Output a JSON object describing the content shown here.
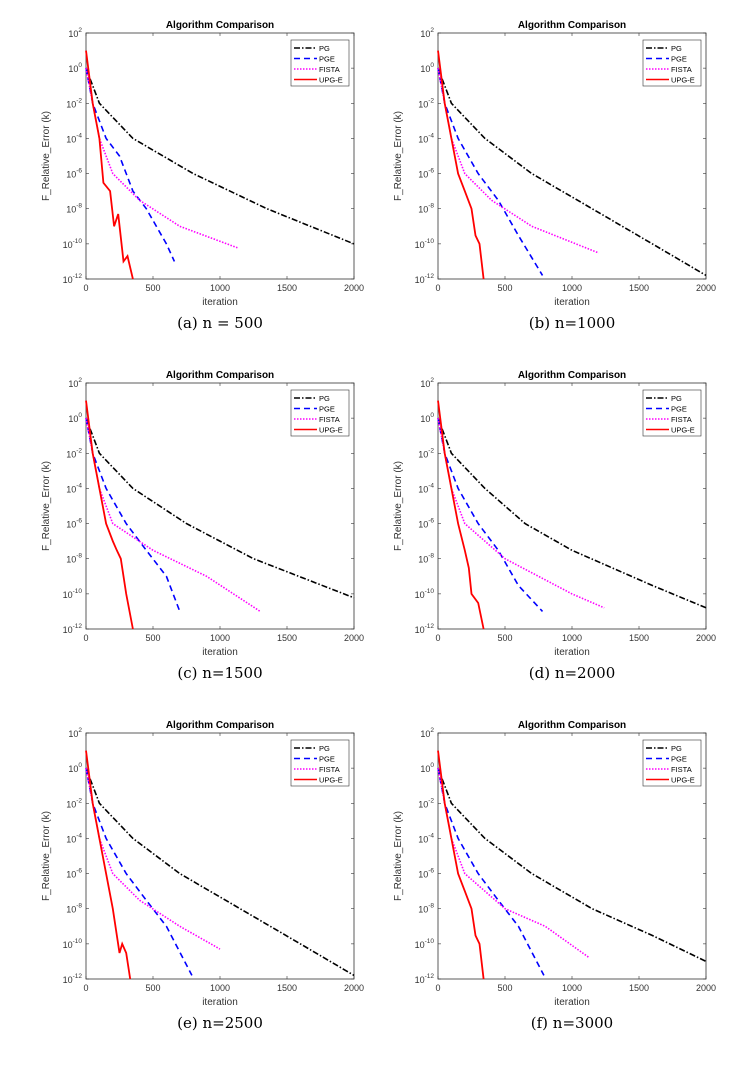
{
  "chart_data": [
    {
      "type": "line",
      "caption": "(a) n = 500",
      "title": "Algorithm Comparison",
      "xlabel": "iteration",
      "ylabel": "F_Relative_Error (k)",
      "xlim": [
        0,
        2000
      ],
      "ylim": [
        1e-12,
        100
      ],
      "yscale": "log",
      "legend": "top-right",
      "series": [
        {
          "name": "PG",
          "color": "#000000",
          "style": "dash-dot",
          "points": [
            [
              0,
              1
            ],
            [
              100,
              0.01
            ],
            [
              350,
              0.0001
            ],
            [
              800,
              1e-06
            ],
            [
              1350,
              1e-08
            ],
            [
              2000,
              1e-10
            ]
          ]
        },
        {
          "name": "PGE",
          "color": "#0000ff",
          "style": "dashed",
          "points": [
            [
              0,
              1
            ],
            [
              50,
              0.01
            ],
            [
              150,
              0.0001
            ],
            [
              250,
              1e-05
            ],
            [
              350,
              1e-07
            ],
            [
              450,
              1e-08
            ],
            [
              600,
              1e-10
            ],
            [
              660,
              1e-11
            ]
          ]
        },
        {
          "name": "FISTA",
          "color": "#ff00ff",
          "style": "dotted",
          "points": [
            [
              0,
              1
            ],
            [
              100,
              0.0001
            ],
            [
              200,
              1e-06
            ],
            [
              400,
              3e-08
            ],
            [
              700,
              1e-09
            ],
            [
              1130,
              6e-11
            ]
          ]
        },
        {
          "name": "UPG-E",
          "color": "#ff0000",
          "style": "solid",
          "points": [
            [
              0,
              10
            ],
            [
              50,
              0.01
            ],
            [
              100,
              0.0001
            ],
            [
              130,
              3e-07
            ],
            [
              180,
              1e-07
            ],
            [
              210,
              1e-09
            ],
            [
              240,
              5e-09
            ],
            [
              280,
              1e-11
            ],
            [
              310,
              2e-11
            ],
            [
              350,
              1e-12
            ]
          ]
        }
      ]
    },
    {
      "type": "line",
      "caption": "(b) n=1000",
      "title": "Algorithm Comparison",
      "xlabel": "iteration",
      "ylabel": "F_Relative_Error (k)",
      "xlim": [
        0,
        2000
      ],
      "ylim": [
        1e-12,
        100
      ],
      "yscale": "log",
      "legend": "top-right",
      "series": [
        {
          "name": "PG",
          "color": "#000000",
          "style": "dash-dot",
          "points": [
            [
              0,
              1
            ],
            [
              100,
              0.01
            ],
            [
              350,
              0.0001
            ],
            [
              700,
              1e-06
            ],
            [
              1150,
              1e-08
            ],
            [
              1600,
              1e-10
            ],
            [
              2000,
              1.6e-12
            ]
          ]
        },
        {
          "name": "PGE",
          "color": "#0000ff",
          "style": "dashed",
          "points": [
            [
              0,
              1
            ],
            [
              50,
              0.01
            ],
            [
              150,
              0.0001
            ],
            [
              300,
              1e-06
            ],
            [
              450,
              3e-08
            ],
            [
              600,
              3e-10
            ],
            [
              780,
              1.6e-12
            ]
          ]
        },
        {
          "name": "FISTA",
          "color": "#ff00ff",
          "style": "dotted",
          "points": [
            [
              0,
              1
            ],
            [
              100,
              0.0001
            ],
            [
              200,
              1e-06
            ],
            [
              400,
              3e-08
            ],
            [
              700,
              1e-09
            ],
            [
              1200,
              3e-11
            ]
          ]
        },
        {
          "name": "UPG-E",
          "color": "#ff0000",
          "style": "solid",
          "points": [
            [
              0,
              10
            ],
            [
              50,
              0.01
            ],
            [
              100,
              0.0001
            ],
            [
              150,
              1e-06
            ],
            [
              200,
              1e-07
            ],
            [
              250,
              1e-08
            ],
            [
              280,
              3e-10
            ],
            [
              310,
              1e-10
            ],
            [
              340,
              1e-12
            ]
          ]
        }
      ]
    },
    {
      "type": "line",
      "caption": "(c) n=1500",
      "title": "Algorithm Comparison",
      "xlabel": "iteration",
      "ylabel": "F_Relative_Error (k)",
      "xlim": [
        0,
        2000
      ],
      "ylim": [
        1e-12,
        100
      ],
      "yscale": "log",
      "legend": "top-right",
      "series": [
        {
          "name": "PG",
          "color": "#000000",
          "style": "dash-dot",
          "points": [
            [
              0,
              1
            ],
            [
              100,
              0.01
            ],
            [
              350,
              0.0001
            ],
            [
              750,
              1e-06
            ],
            [
              1250,
              1e-08
            ],
            [
              2000,
              6e-11
            ]
          ]
        },
        {
          "name": "PGE",
          "color": "#0000ff",
          "style": "dashed",
          "points": [
            [
              0,
              1
            ],
            [
              50,
              0.01
            ],
            [
              150,
              0.0001
            ],
            [
              300,
              1e-06
            ],
            [
              450,
              3e-08
            ],
            [
              600,
              1e-09
            ],
            [
              700,
              1e-11
            ]
          ]
        },
        {
          "name": "FISTA",
          "color": "#ff00ff",
          "style": "dotted",
          "points": [
            [
              0,
              1
            ],
            [
              100,
              0.0001
            ],
            [
              200,
              1e-06
            ],
            [
              500,
              3e-08
            ],
            [
              900,
              1e-09
            ],
            [
              1300,
              1e-11
            ]
          ]
        },
        {
          "name": "UPG-E",
          "color": "#ff0000",
          "style": "solid",
          "points": [
            [
              0,
              10
            ],
            [
              50,
              0.01
            ],
            [
              100,
              0.0001
            ],
            [
              150,
              1e-06
            ],
            [
              200,
              1e-07
            ],
            [
              230,
              3e-08
            ],
            [
              260,
              1e-08
            ],
            [
              300,
              1e-10
            ],
            [
              350,
              1e-12
            ]
          ]
        }
      ]
    },
    {
      "type": "line",
      "caption": "(d) n=2000",
      "title": "Algorithm Comparison",
      "xlabel": "iteration",
      "ylabel": "F_Relative_Error (k)",
      "xlim": [
        0,
        2000
      ],
      "ylim": [
        1e-12,
        100
      ],
      "yscale": "log",
      "legend": "top-right",
      "series": [
        {
          "name": "PG",
          "color": "#000000",
          "style": "dash-dot",
          "points": [
            [
              0,
              1
            ],
            [
              100,
              0.01
            ],
            [
              350,
              0.0001
            ],
            [
              650,
              1e-06
            ],
            [
              1000,
              3e-08
            ],
            [
              1300,
              3e-09
            ],
            [
              1600,
              3e-10
            ],
            [
              2000,
              1.6e-11
            ]
          ]
        },
        {
          "name": "PGE",
          "color": "#0000ff",
          "style": "dashed",
          "points": [
            [
              0,
              1
            ],
            [
              50,
              0.01
            ],
            [
              150,
              0.0001
            ],
            [
              300,
              1e-06
            ],
            [
              450,
              3e-08
            ],
            [
              600,
              3e-10
            ],
            [
              780,
              1e-11
            ]
          ]
        },
        {
          "name": "FISTA",
          "color": "#ff00ff",
          "style": "dotted",
          "points": [
            [
              0,
              1
            ],
            [
              100,
              0.0001
            ],
            [
              200,
              1e-06
            ],
            [
              500,
              1e-08
            ],
            [
              1000,
              1e-10
            ],
            [
              1240,
              1.6e-11
            ]
          ]
        },
        {
          "name": "UPG-E",
          "color": "#ff0000",
          "style": "solid",
          "points": [
            [
              0,
              10
            ],
            [
              50,
              0.01
            ],
            [
              100,
              0.0001
            ],
            [
              150,
              1e-06
            ],
            [
              200,
              3e-08
            ],
            [
              230,
              3e-09
            ],
            [
              250,
              1e-10
            ],
            [
              300,
              3e-11
            ],
            [
              340,
              1e-12
            ]
          ]
        }
      ]
    },
    {
      "type": "line",
      "caption": "(e) n=2500",
      "title": "Algorithm Comparison",
      "xlabel": "iteration",
      "ylabel": "F_Relative_Error (k)",
      "xlim": [
        0,
        2000
      ],
      "ylim": [
        1e-12,
        100
      ],
      "yscale": "log",
      "legend": "top-right",
      "series": [
        {
          "name": "PG",
          "color": "#000000",
          "style": "dash-dot",
          "points": [
            [
              0,
              1
            ],
            [
              100,
              0.01
            ],
            [
              350,
              0.0001
            ],
            [
              700,
              1e-06
            ],
            [
              1150,
              1e-08
            ],
            [
              1600,
              1e-10
            ],
            [
              2000,
              1.6e-12
            ]
          ]
        },
        {
          "name": "PGE",
          "color": "#0000ff",
          "style": "dashed",
          "points": [
            [
              0,
              1
            ],
            [
              50,
              0.01
            ],
            [
              150,
              0.0001
            ],
            [
              300,
              1e-06
            ],
            [
              450,
              3e-08
            ],
            [
              600,
              1e-09
            ],
            [
              790,
              1.6e-12
            ]
          ]
        },
        {
          "name": "FISTA",
          "color": "#ff00ff",
          "style": "dotted",
          "points": [
            [
              0,
              1
            ],
            [
              100,
              0.0001
            ],
            [
              200,
              1e-06
            ],
            [
              400,
              3e-08
            ],
            [
              700,
              1e-09
            ],
            [
              1000,
              5e-11
            ]
          ]
        },
        {
          "name": "UPG-E",
          "color": "#ff0000",
          "style": "solid",
          "points": [
            [
              0,
              10
            ],
            [
              50,
              0.01
            ],
            [
              100,
              0.0001
            ],
            [
              150,
              1e-06
            ],
            [
              200,
              1e-08
            ],
            [
              250,
              3e-11
            ],
            [
              270,
              1e-10
            ],
            [
              300,
              3e-11
            ],
            [
              330,
              1e-12
            ]
          ]
        }
      ]
    },
    {
      "type": "line",
      "caption": "(f) n=3000",
      "title": "Algorithm Comparison",
      "xlabel": "iteration",
      "ylabel": "F_Relative_Error (k)",
      "xlim": [
        0,
        2000
      ],
      "ylim": [
        1e-12,
        100
      ],
      "yscale": "log",
      "legend": "top-right",
      "series": [
        {
          "name": "PG",
          "color": "#000000",
          "style": "dash-dot",
          "points": [
            [
              0,
              1
            ],
            [
              100,
              0.01
            ],
            [
              350,
              0.0001
            ],
            [
              700,
              1e-06
            ],
            [
              1150,
              1e-08
            ],
            [
              1600,
              3e-10
            ],
            [
              2000,
              1e-11
            ]
          ]
        },
        {
          "name": "PGE",
          "color": "#0000ff",
          "style": "dashed",
          "points": [
            [
              0,
              1
            ],
            [
              50,
              0.01
            ],
            [
              150,
              0.0001
            ],
            [
              300,
              1e-06
            ],
            [
              450,
              3e-08
            ],
            [
              600,
              1e-09
            ],
            [
              790,
              1.6e-12
            ]
          ]
        },
        {
          "name": "FISTA",
          "color": "#ff00ff",
          "style": "dotted",
          "points": [
            [
              0,
              1
            ],
            [
              100,
              0.0001
            ],
            [
              200,
              1e-06
            ],
            [
              500,
              1e-08
            ],
            [
              800,
              1e-09
            ],
            [
              1130,
              1.6e-11
            ]
          ]
        },
        {
          "name": "UPG-E",
          "color": "#ff0000",
          "style": "solid",
          "points": [
            [
              0,
              10
            ],
            [
              50,
              0.01
            ],
            [
              100,
              0.0001
            ],
            [
              150,
              1e-06
            ],
            [
              200,
              1e-07
            ],
            [
              250,
              1e-08
            ],
            [
              280,
              3e-10
            ],
            [
              310,
              1e-10
            ],
            [
              340,
              1e-12
            ]
          ]
        }
      ]
    }
  ],
  "xticks": [
    "0",
    "500",
    "1000",
    "1500",
    "2000"
  ],
  "yticks_exp": [
    "2",
    "0",
    "-2",
    "-4",
    "-6",
    "-8",
    "-10",
    "-12"
  ]
}
